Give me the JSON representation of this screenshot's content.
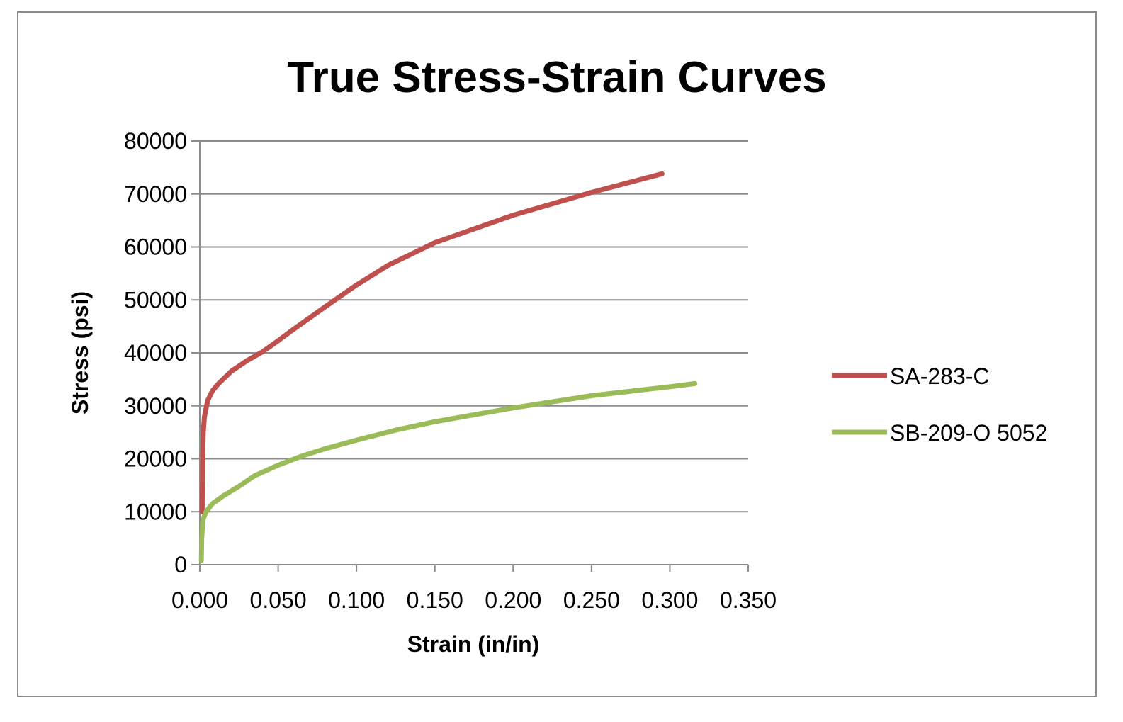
{
  "chart_data": {
    "type": "line",
    "title": "True Stress-Strain Curves",
    "xlabel": "Strain (in/in)",
    "ylabel": "Stress (psi)",
    "xlim": [
      0,
      0.35
    ],
    "ylim": [
      0,
      80000
    ],
    "xticks": [
      "0.000",
      "0.050",
      "0.100",
      "0.150",
      "0.200",
      "0.250",
      "0.300",
      "0.350"
    ],
    "yticks": [
      "0",
      "10000",
      "20000",
      "30000",
      "40000",
      "50000",
      "60000",
      "70000",
      "80000"
    ],
    "grid": true,
    "legend_position": "right",
    "series": [
      {
        "name": "SA-283-C",
        "color": "#c0504d",
        "points": [
          [
            0.0015,
            10000
          ],
          [
            0.0018,
            20000
          ],
          [
            0.0022,
            25000
          ],
          [
            0.003,
            28000
          ],
          [
            0.005,
            31000
          ],
          [
            0.008,
            32800
          ],
          [
            0.012,
            34200
          ],
          [
            0.02,
            36500
          ],
          [
            0.03,
            38500
          ],
          [
            0.04,
            40200
          ],
          [
            0.05,
            42300
          ],
          [
            0.06,
            44500
          ],
          [
            0.08,
            48700
          ],
          [
            0.1,
            52800
          ],
          [
            0.12,
            56500
          ],
          [
            0.15,
            60800
          ],
          [
            0.2,
            66000
          ],
          [
            0.25,
            70300
          ],
          [
            0.295,
            73800
          ]
        ]
      },
      {
        "name": "SB-209-O 5052",
        "color": "#9bbb59",
        "points": [
          [
            0.001,
            800
          ],
          [
            0.0012,
            5000
          ],
          [
            0.002,
            8500
          ],
          [
            0.004,
            10000
          ],
          [
            0.008,
            11500
          ],
          [
            0.015,
            13000
          ],
          [
            0.025,
            14800
          ],
          [
            0.035,
            16800
          ],
          [
            0.05,
            18800
          ],
          [
            0.065,
            20500
          ],
          [
            0.08,
            21900
          ],
          [
            0.1,
            23500
          ],
          [
            0.125,
            25400
          ],
          [
            0.15,
            27000
          ],
          [
            0.2,
            29600
          ],
          [
            0.25,
            31900
          ],
          [
            0.3,
            33600
          ],
          [
            0.316,
            34200
          ]
        ]
      }
    ]
  }
}
